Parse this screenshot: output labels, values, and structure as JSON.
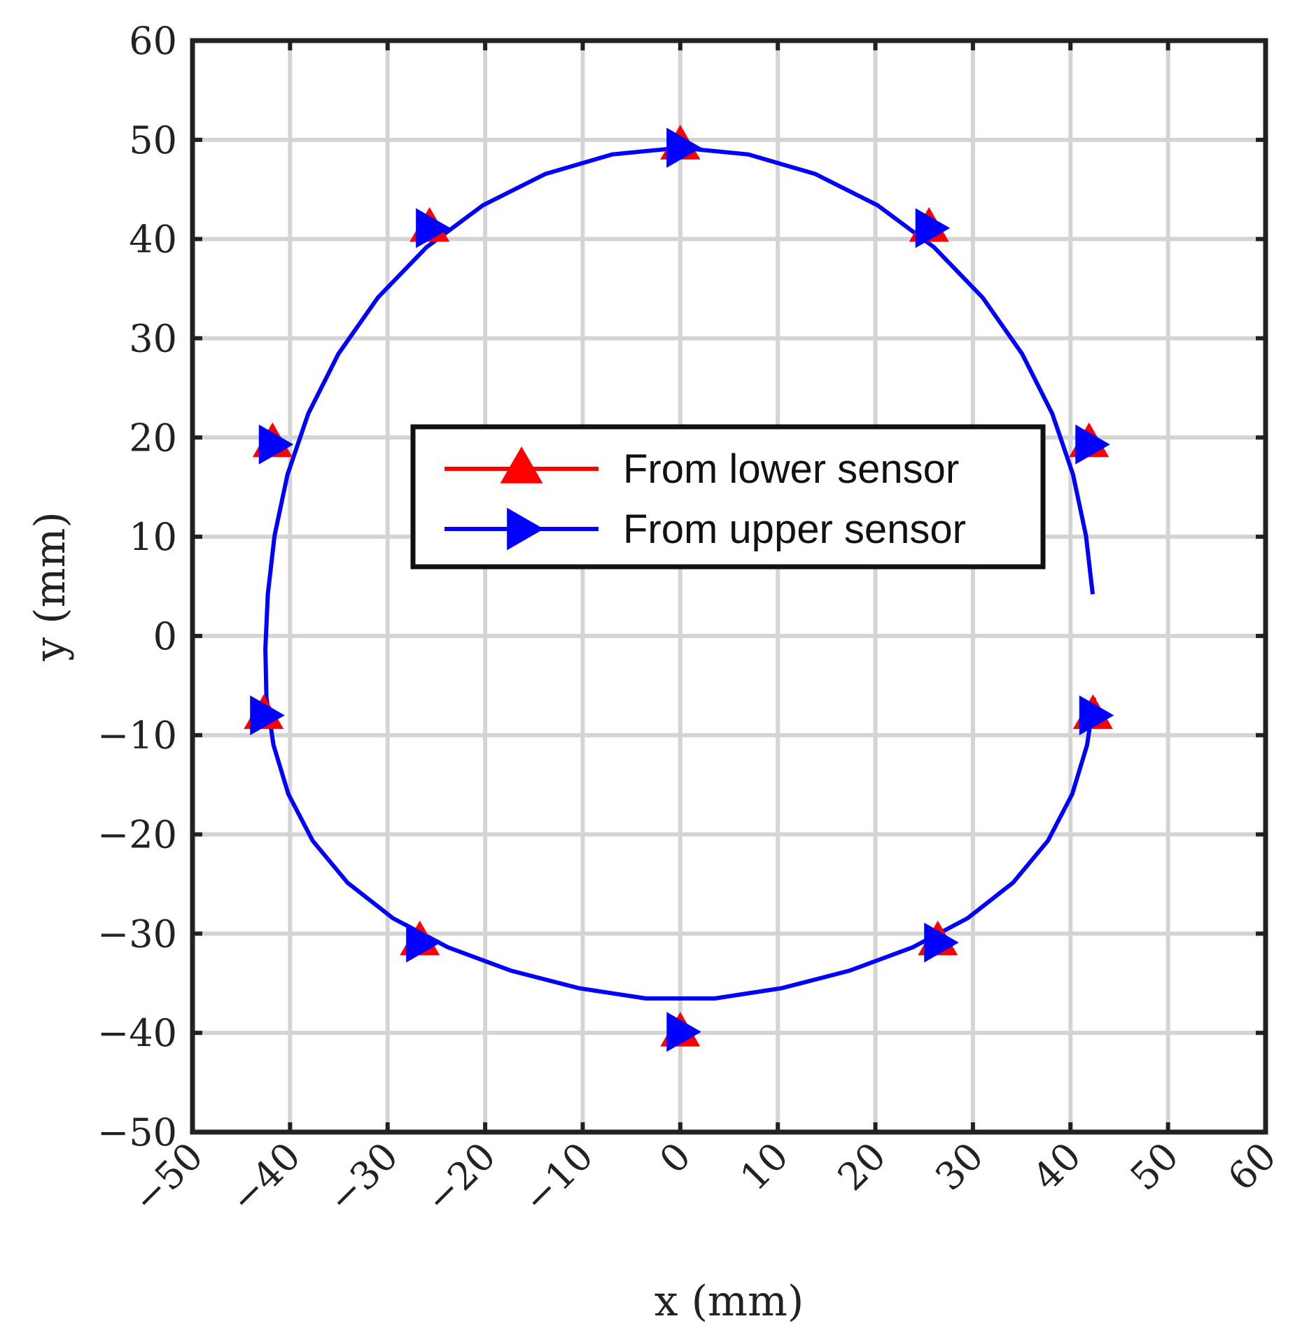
{
  "chart_data": {
    "type": "line",
    "xlabel": "x (mm)",
    "ylabel": "y (mm)",
    "xlim": [
      -50,
      60
    ],
    "ylim": [
      -50,
      60
    ],
    "xticks": [
      -50,
      -40,
      -30,
      -20,
      -10,
      0,
      10,
      20,
      30,
      40,
      50,
      60
    ],
    "yticks": [
      -50,
      -40,
      -30,
      -20,
      -10,
      0,
      10,
      20,
      30,
      40,
      50,
      60
    ],
    "xtick_labels": [
      "−50",
      "−40",
      "−30",
      "−20",
      "−10",
      "0",
      "10",
      "20",
      "30",
      "40",
      "50",
      "60"
    ],
    "ytick_labels": [
      "−50",
      "−40",
      "−30",
      "−20",
      "−10",
      "0",
      "10",
      "20",
      "30",
      "40",
      "50",
      "60"
    ],
    "grid": true,
    "legend_position": "center",
    "series": [
      {
        "name": "From lower sensor",
        "color": "#ff0000",
        "marker": "triangle-up",
        "x": [
          0,
          25.5,
          41.9,
          42.3,
          26.4,
          0,
          -26.7,
          -42.7,
          -41.8,
          -25.7,
          0
        ],
        "y": [
          49.4,
          41.1,
          19.4,
          -8.0,
          -30.8,
          -40.0,
          -30.8,
          -8.0,
          19.4,
          41.1,
          49.4
        ]
      },
      {
        "name": "From upper sensor",
        "color": "#0000ff",
        "marker": "triangle-right",
        "x": [
          0,
          25.5,
          41.9,
          42.3,
          26.4,
          0,
          -26.7,
          -42.7,
          -41.8,
          -25.7,
          0
        ],
        "y": [
          49.2,
          41.1,
          19.3,
          -8.0,
          -30.9,
          -39.9,
          -30.9,
          -8.0,
          19.3,
          41.1,
          49.2
        ],
        "curve": {
          "x": [
            0.0,
            6.99,
            13.83,
            20.25,
            26.02,
            30.99,
            35.04,
            38.13,
            40.27,
            41.59,
            42.28,
            42.53,
            42.42,
            41.7,
            40.18,
            37.69,
            34.11,
            29.45,
            23.79,
            17.32,
            10.37,
            3.52,
            -3.52,
            -10.37,
            -17.32,
            -23.79,
            -29.45,
            -34.11,
            -37.69,
            -40.18,
            -41.7,
            -42.42,
            -42.53,
            -42.28,
            -41.59,
            -40.27,
            -38.13,
            -35.04,
            -30.99,
            -26.02,
            -20.25,
            -13.83,
            -6.99,
            0.0
          ],
          "y": [
            49.2,
            48.53,
            46.56,
            43.39,
            39.17,
            34.11,
            28.44,
            22.41,
            16.24,
            10.1,
            4.2,
            -1.3,
            -6.22,
            -10.99,
            -15.93,
            -20.63,
            -24.86,
            -28.45,
            -31.39,
            -33.74,
            -35.5,
            -36.53,
            -36.53,
            -35.5,
            -33.74,
            -31.39,
            -28.45,
            -24.86,
            -20.63,
            -15.93,
            -10.99,
            -6.22,
            -1.3,
            4.2,
            10.1,
            16.24,
            22.41,
            28.44,
            34.11,
            39.17,
            43.39,
            46.56,
            48.53,
            49.2
          ]
        }
      }
    ]
  }
}
